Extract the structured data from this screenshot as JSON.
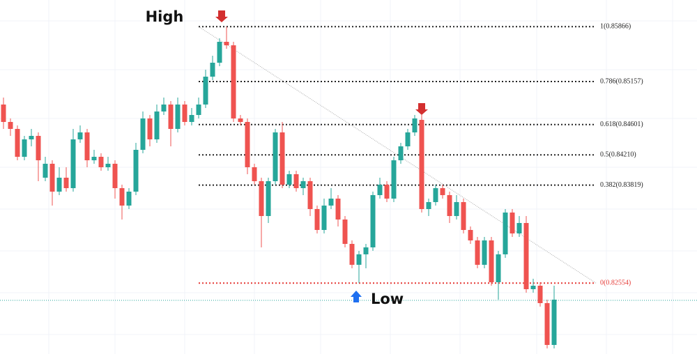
{
  "chart_data": {
    "type": "candlestick",
    "annotations": [
      {
        "text": "High"
      },
      {
        "text": "Low"
      }
    ],
    "open": [
      0.8486,
      0.84635,
      0.84545,
      0.84185,
      0.8441,
      0.84455,
      0.83915,
      0.84095,
      0.83735,
      0.83915,
      0.8378,
      0.8441,
      0.845,
      0.8414,
      0.84185,
      0.8405,
      0.84095,
      0.8378,
      0.83555,
      0.83735,
      0.84275,
      0.8468,
      0.8441,
      0.8477,
      0.8486,
      0.84545,
      0.8486,
      0.84635,
      0.84725,
      0.8486,
      0.8522,
      0.854,
      0.8567,
      0.85625,
      0.8468,
      0.84635,
      0.8405,
      0.8387,
      0.8342,
      0.8387,
      0.845,
      0.83825,
      0.8396,
      0.8378,
      0.8387,
      0.8351,
      0.8324,
      0.83555,
      0.83645,
      0.83375,
      0.8306,
      0.8279,
      0.82925,
      0.83015,
      0.8369,
      0.83825,
      0.83645,
      0.8414,
      0.8432,
      0.845,
      0.84662,
      0.8351,
      0.836,
      0.8378,
      0.8369,
      0.8342,
      0.836,
      0.8324,
      0.83105,
      0.8279,
      0.83105,
      0.82565,
      0.82925,
      0.83465,
      0.83195,
      0.8333,
      0.82475,
      0.8252,
      0.82295,
      0.81755
    ],
    "high": [
      0.8495,
      0.8468,
      0.8459,
      0.84455,
      0.84545,
      0.845,
      0.84185,
      0.8414,
      0.8405,
      0.8405,
      0.84545,
      0.8459,
      0.84545,
      0.84275,
      0.8423,
      0.84185,
      0.8414,
      0.83825,
      0.8378,
      0.84365,
      0.8477,
      0.84725,
      0.8486,
      0.8495,
      0.84905,
      0.8495,
      0.84905,
      0.84815,
      0.8495,
      0.8531,
      0.8549,
      0.85715,
      0.85866,
      0.8567,
      0.84725,
      0.8468,
      0.84095,
      0.83915,
      0.83915,
      0.84545,
      0.84635,
      0.84005,
      0.84005,
      0.83915,
      0.83915,
      0.83555,
      0.83645,
      0.8378,
      0.8369,
      0.8342,
      0.83105,
      0.8297,
      0.8306,
      0.83735,
      0.83915,
      0.8387,
      0.84185,
      0.84365,
      0.84545,
      0.84725,
      0.84725,
      0.83645,
      0.83825,
      0.83825,
      0.83735,
      0.8369,
      0.83645,
      0.83285,
      0.8315,
      0.8315,
      0.8315,
      0.8297,
      0.8351,
      0.8351,
      0.8342,
      0.8342,
      0.8261,
      0.82565,
      0.8234,
      0.8252
    ],
    "low": [
      0.84545,
      0.84455,
      0.8414,
      0.8414,
      0.8432,
      0.8387,
      0.8387,
      0.83555,
      0.8369,
      0.83735,
      0.83735,
      0.84365,
      0.8405,
      0.84095,
      0.84005,
      0.84005,
      0.83645,
      0.83375,
      0.8351,
      0.8369,
      0.8423,
      0.8432,
      0.84365,
      0.84725,
      0.8432,
      0.845,
      0.8459,
      0.8459,
      0.8468,
      0.84815,
      0.85175,
      0.85355,
      0.8558,
      0.84635,
      0.8459,
      0.8396,
      0.83825,
      0.83015,
      0.8333,
      0.83825,
      0.8378,
      0.8378,
      0.83735,
      0.8369,
      0.8342,
      0.83195,
      0.83195,
      0.8351,
      0.83285,
      0.83015,
      0.82745,
      0.82554,
      0.82745,
      0.8297,
      0.83645,
      0.836,
      0.836,
      0.84095,
      0.84275,
      0.84455,
      0.83465,
      0.8342,
      0.83555,
      0.83645,
      0.8333,
      0.83375,
      0.83195,
      0.8306,
      0.82745,
      0.82745,
      0.8252,
      0.8234,
      0.8288,
      0.8315,
      0.8315,
      0.8243,
      0.8243,
      0.8225,
      0.8171,
      0.8171
    ],
    "close": [
      0.84635,
      0.84545,
      0.84185,
      0.8441,
      0.84455,
      0.8414,
      0.84095,
      0.83735,
      0.83915,
      0.8378,
      0.8441,
      0.845,
      0.8414,
      0.84185,
      0.8405,
      0.84095,
      0.8378,
      0.83555,
      0.83735,
      0.84275,
      0.8468,
      0.8441,
      0.8477,
      0.8486,
      0.84545,
      0.8486,
      0.84635,
      0.84725,
      0.8486,
      0.8522,
      0.854,
      0.8567,
      0.85625,
      0.8468,
      0.84635,
      0.8405,
      0.8387,
      0.8342,
      0.8387,
      0.845,
      0.83825,
      0.8396,
      0.8378,
      0.8387,
      0.8351,
      0.8324,
      0.83555,
      0.83645,
      0.83375,
      0.8306,
      0.8279,
      0.82925,
      0.83015,
      0.8369,
      0.83825,
      0.83645,
      0.8414,
      0.8432,
      0.845,
      0.8468,
      0.8351,
      0.836,
      0.8378,
      0.8369,
      0.8342,
      0.836,
      0.8324,
      0.83105,
      0.8279,
      0.83105,
      0.82565,
      0.82925,
      0.83465,
      0.83195,
      0.8333,
      0.82475,
      0.8252,
      0.82295,
      0.81755,
      0.8234
    ],
    "up_color": "#26a69a",
    "down_color": "#ef5350",
    "ylim": [
      0.81638,
      0.8621
    ],
    "grid": true,
    "fib_levels": [
      {
        "label": "1(0.85866)",
        "ratio": 1,
        "price": 0.85866,
        "color": "#222222"
      },
      {
        "label": "0.786(0.85157)",
        "ratio": 0.786,
        "price": 0.85157,
        "color": "#222222"
      },
      {
        "label": "0.618(0.84601)",
        "ratio": 0.618,
        "price": 0.84601,
        "color": "#222222"
      },
      {
        "label": "0.5(0.84210)",
        "ratio": 0.5,
        "price": 0.8421,
        "color": "#222222"
      },
      {
        "label": "0.382(0.83819)",
        "ratio": 0.382,
        "price": 0.83819,
        "color": "#222222"
      },
      {
        "label": "0(0.82554)",
        "ratio": 0,
        "price": 0.82554,
        "color": "#e53935"
      }
    ],
    "trend_line_color": "#a8a8a8",
    "price_line": {
      "value": 0.82331,
      "color": "#26a69a"
    }
  }
}
